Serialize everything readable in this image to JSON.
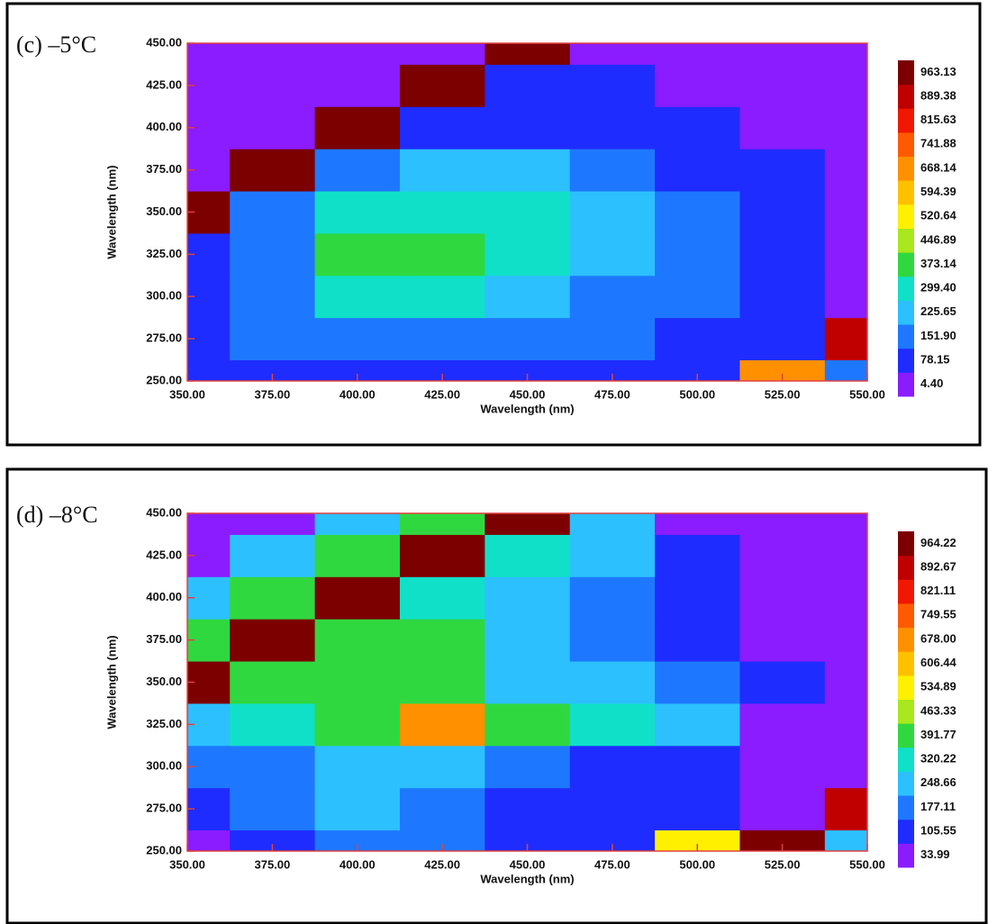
{
  "chart_data": [
    {
      "type": "heatmap",
      "title": "(c) –5°C",
      "xlabel": "Wavelength (nm)",
      "ylabel": "Wavelength (nm)",
      "x": [
        350,
        375,
        400,
        425,
        450,
        475,
        500,
        525,
        550
      ],
      "y": [
        250,
        275,
        300,
        325,
        350,
        375,
        400,
        425,
        450
      ],
      "z": [
        [
          80,
          90,
          100,
          100,
          100,
          90,
          90,
          700,
          200
        ],
        [
          110,
          160,
          200,
          190,
          180,
          160,
          130,
          110,
          900
        ],
        [
          100,
          200,
          300,
          300,
          270,
          220,
          160,
          90,
          60
        ],
        [
          150,
          220,
          380,
          400,
          360,
          290,
          180,
          90,
          60
        ],
        [
          980,
          200,
          340,
          370,
          330,
          280,
          170,
          90,
          60
        ],
        [
          60,
          990,
          200,
          260,
          260,
          200,
          140,
          80,
          60
        ],
        [
          30,
          60,
          990,
          150,
          150,
          120,
          90,
          60,
          50
        ],
        [
          20,
          30,
          60,
          990,
          120,
          80,
          70,
          60,
          50
        ],
        [
          20,
          20,
          30,
          50,
          980,
          60,
          60,
          60,
          50
        ]
      ],
      "xlim": [
        350,
        550
      ],
      "ylim": [
        250,
        450
      ],
      "xticks": [
        {
          "value": 350,
          "label": "350.00"
        },
        {
          "value": 375,
          "label": "375.00"
        },
        {
          "value": 400,
          "label": "400.00"
        },
        {
          "value": 425,
          "label": "425.00"
        },
        {
          "value": 450,
          "label": "450.00"
        },
        {
          "value": 475,
          "label": "475.00"
        },
        {
          "value": 500,
          "label": "500.00"
        },
        {
          "value": 525,
          "label": "525.00"
        },
        {
          "value": 550,
          "label": "550.00"
        }
      ],
      "yticks": [
        {
          "value": 250,
          "label": "250.00"
        },
        {
          "value": 275,
          "label": "275.00"
        },
        {
          "value": 300,
          "label": "300.00"
        },
        {
          "value": 325,
          "label": "325.00"
        },
        {
          "value": 350,
          "label": "350.00"
        },
        {
          "value": 375,
          "label": "375.00"
        },
        {
          "value": 400,
          "label": "400.00"
        },
        {
          "value": 425,
          "label": "425.00"
        },
        {
          "value": 450,
          "label": "450.00"
        }
      ],
      "colorbar_ticks": [
        {
          "value": 4.4,
          "label": "4.40"
        },
        78.15,
        {
          "value": 151.9,
          "label": "151.90"
        },
        225.65,
        {
          "value": 299.4,
          "label": "299.40"
        },
        373.14,
        446.89,
        520.64,
        594.39,
        668.14,
        741.88,
        815.63,
        889.38,
        963.13
      ],
      "colors": [
        "#8a1cff",
        "#1f2cff",
        "#1e78ff",
        "#2cc0ff",
        "#10e0c8",
        "#30d840",
        "#a8e81c",
        "#fff000",
        "#ffc000",
        "#ff9000",
        "#ff5a00",
        "#f01800",
        "#c00000",
        "#7c0000"
      ]
    },
    {
      "type": "heatmap",
      "title": "(d) –8°C",
      "xlabel": "Wavelength (nm)",
      "ylabel": "Wavelength (nm)",
      "x": [
        350,
        375,
        400,
        425,
        450,
        475,
        500,
        525,
        550
      ],
      "y": [
        250,
        275,
        300,
        325,
        350,
        375,
        400,
        425,
        450
      ],
      "z": [
        [
          100,
          120,
          180,
          180,
          110,
          150,
          600,
          980,
          300
        ],
        [
          150,
          180,
          250,
          200,
          150,
          130,
          120,
          100,
          900
        ],
        [
          200,
          180,
          250,
          260,
          200,
          160,
          120,
          100,
          80
        ],
        [
          300,
          330,
          400,
          700,
          400,
          330,
          250,
          100,
          80
        ],
        [
          990,
          420,
          420,
          420,
          300,
          280,
          230,
          110,
          80
        ],
        [
          450,
          990,
          420,
          400,
          250,
          200,
          120,
          100,
          80
        ],
        [
          250,
          450,
          990,
          380,
          280,
          220,
          130,
          100,
          80
        ],
        [
          60,
          250,
          400,
          990,
          350,
          250,
          120,
          70,
          60
        ],
        [
          60,
          80,
          300,
          400,
          990,
          250,
          100,
          60,
          60
        ]
      ],
      "xlim": [
        350,
        550
      ],
      "ylim": [
        250,
        450
      ],
      "xticks": [
        {
          "value": 350,
          "label": "350.00"
        },
        {
          "value": 375,
          "label": "375.00"
        },
        {
          "value": 400,
          "label": "400.00"
        },
        {
          "value": 425,
          "label": "425.00"
        },
        {
          "value": 450,
          "label": "450.00"
        },
        {
          "value": 475,
          "label": "475.00"
        },
        {
          "value": 500,
          "label": "500.00"
        },
        {
          "value": 525,
          "label": "525.00"
        },
        {
          "value": 550,
          "label": "550.00"
        }
      ],
      "yticks": [
        {
          "value": 250,
          "label": "250.00"
        },
        {
          "value": 275,
          "label": "275.00"
        },
        {
          "value": 300,
          "label": "300.00"
        },
        {
          "value": 325,
          "label": "325.00"
        },
        {
          "value": 350,
          "label": "350.00"
        },
        {
          "value": 375,
          "label": "375.00"
        },
        {
          "value": 400,
          "label": "400.00"
        },
        {
          "value": 425,
          "label": "425.00"
        },
        {
          "value": 450,
          "label": "450.00"
        }
      ],
      "colorbar_ticks": [
        33.99,
        105.55,
        177.11,
        248.66,
        320.22,
        391.77,
        463.33,
        534.89,
        606.44,
        {
          "value": 678,
          "label": "678.00"
        },
        749.55,
        821.11,
        892.67,
        964.22
      ],
      "colors": [
        "#8a1cff",
        "#1f2cff",
        "#1e78ff",
        "#2cc0ff",
        "#10e0c8",
        "#30d840",
        "#a8e81c",
        "#fff000",
        "#ffc000",
        "#ff9000",
        "#ff5a00",
        "#f01800",
        "#c00000",
        "#7c0000"
      ]
    }
  ]
}
